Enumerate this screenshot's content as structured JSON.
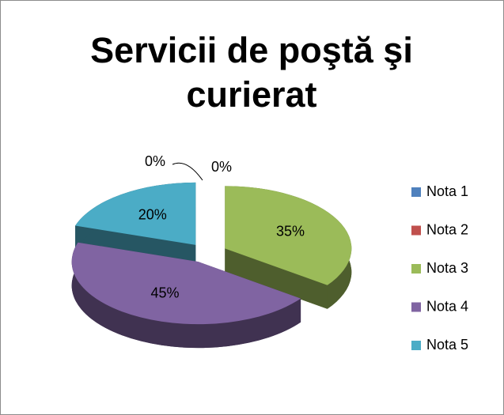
{
  "chart_data": {
    "type": "pie3d",
    "title": "Servicii de poştă şi curierat",
    "categories": [
      "Nota 1",
      "Nota 2",
      "Nota 3",
      "Nota 4",
      "Nota 5"
    ],
    "values": [
      0,
      0,
      35,
      45,
      20
    ],
    "value_labels": [
      "0%",
      "0%",
      "35%",
      "45%",
      "20%"
    ],
    "colors": [
      "#4f81bd",
      "#c0504d",
      "#9bbb59",
      "#8064a2",
      "#4bacc6"
    ],
    "legend": "right"
  }
}
